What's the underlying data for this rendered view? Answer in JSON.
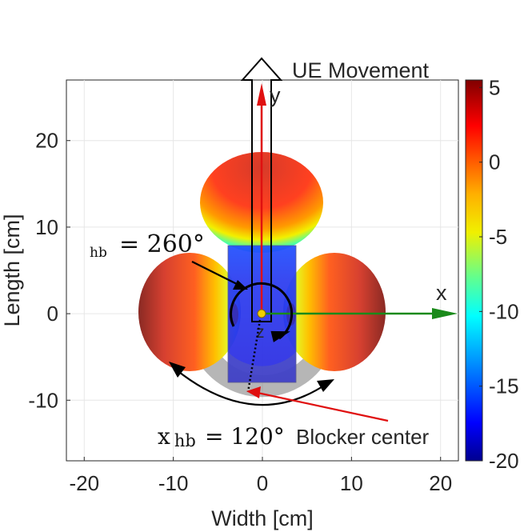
{
  "figure": {
    "x_axis": {
      "label": "Width [cm]",
      "range": [
        -22,
        22
      ],
      "ticks": [
        -20,
        -10,
        0,
        10,
        20
      ],
      "tick_labels": [
        "-20",
        "-10",
        "0",
        "10",
        "20"
      ]
    },
    "y_axis": {
      "label": "Length [cm]",
      "range": [
        -17,
        27
      ],
      "ticks": [
        -10,
        0,
        10,
        20
      ],
      "tick_labels": [
        "-10",
        "0",
        "10",
        "20"
      ]
    },
    "grid": true,
    "colorbar": {
      "range": [
        -20,
        5.5
      ],
      "ticks": [
        5,
        0,
        -5,
        -10,
        -15,
        -20
      ],
      "tick_labels": [
        "5",
        "0",
        "-5",
        "-10",
        "-15",
        "-20"
      ],
      "colormap": "jet"
    },
    "annotations": {
      "ue_movement": "UE Movement",
      "axis_x": "x",
      "axis_y": "y",
      "axis_z": "z",
      "blocker_center": "Blocker center",
      "angle_top_sub": "hb",
      "angle_top_value": "= 260°",
      "angle_bottom_main": "x",
      "angle_bottom_sub": "hb",
      "angle_bottom_value": "= 120°"
    },
    "colors": {
      "axis_x_arrow": "#1a8a1a",
      "axis_y_arrow": "#e01010",
      "axis_z_label": "#d8b400",
      "blocker_center_text": "#e01010",
      "blocker_box": "#2a3cf0",
      "annotation_arrows": "#000000"
    }
  }
}
